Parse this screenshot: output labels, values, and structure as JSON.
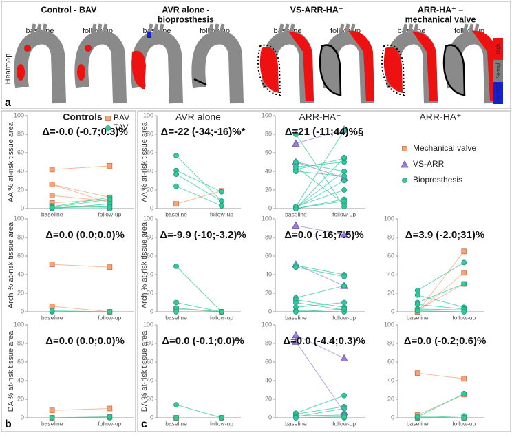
{
  "figure_a": {
    "letter": "a",
    "columns": [
      {
        "title": [
          "Control - BAV"
        ],
        "labels": [
          "baseline",
          "follow-up"
        ]
      },
      {
        "title": [
          "AVR alone -",
          "bioprosthesis"
        ],
        "labels": [
          "baseline",
          "follow-up"
        ]
      },
      {
        "title": [
          "VS-ARR-HA⁻"
        ],
        "labels": [
          "baseline",
          "follow-up"
        ]
      },
      {
        "title": [
          "ARR-HA⁺ –",
          "mechanical valve"
        ],
        "labels": [
          "baseline",
          "follow-up"
        ]
      }
    ],
    "side_label": "Heatmap",
    "colorbar": [
      {
        "label": "High",
        "color": "#ee1111"
      },
      {
        "label": "Normal",
        "color": "#808080"
      },
      {
        "label": "Low WSS",
        "color": "#1122dd"
      }
    ]
  },
  "letters": [
    "b",
    "c"
  ],
  "rows": [
    "AA % at-risk tissue area",
    "Arch % at-risk tissue area",
    "DA % at-risk tissue area"
  ],
  "columns": [
    "Controls",
    "AVR alone",
    "ARR-HA⁻",
    "ARR-HA⁺"
  ],
  "legend": [
    {
      "name": "Mechanical valve",
      "marker": "square",
      "color": "#f4a47c"
    },
    {
      "name": "VS-ARR",
      "marker": "triangle",
      "color": "#9a7ed8"
    },
    {
      "name": "Bioprosthesis",
      "marker": "circle",
      "color": "#33c79e"
    }
  ],
  "chart_data": [
    {
      "type": "line",
      "categories": [
        "baseline",
        "follow-up"
      ],
      "ylim": [
        0,
        100
      ],
      "yticks": [
        0,
        20,
        40,
        60,
        80,
        100
      ],
      "annotation": "Δ=-0.0 (-0.7;0.3)%",
      "legend": [
        {
          "name": "BAV",
          "marker": "square",
          "color": "#f4a47c"
        },
        {
          "name": "TAV",
          "marker": "circle",
          "color": "#33c79e"
        }
      ],
      "lines": [
        {
          "marker": "square",
          "color": "#f4a47c",
          "values": [
            42,
            46
          ]
        },
        {
          "marker": "square",
          "color": "#f4a47c",
          "values": [
            26,
            12
          ]
        },
        {
          "marker": "square",
          "color": "#f4a47c",
          "values": [
            26,
            6
          ]
        },
        {
          "marker": "square",
          "color": "#f4a47c",
          "values": [
            14,
            8
          ]
        },
        {
          "marker": "square",
          "color": "#f4a47c",
          "values": [
            6,
            10
          ]
        },
        {
          "marker": "square",
          "color": "#f4a47c",
          "values": [
            3,
            1
          ]
        },
        {
          "marker": "circle",
          "color": "#33c79e",
          "values": [
            2,
            12
          ]
        },
        {
          "marker": "circle",
          "color": "#33c79e",
          "values": [
            1,
            10
          ]
        },
        {
          "marker": "circle",
          "color": "#33c79e",
          "values": [
            0,
            5
          ]
        },
        {
          "marker": "circle",
          "color": "#33c79e",
          "values": [
            0,
            0
          ]
        },
        {
          "marker": "circle",
          "color": "#33c79e",
          "values": [
            1,
            2
          ]
        }
      ]
    },
    {
      "type": "line",
      "categories": [
        "baseline",
        "follow-up"
      ],
      "ylim": [
        0,
        100
      ],
      "yticks": [
        0,
        20,
        40,
        60,
        80,
        100
      ],
      "annotation": "Δ=-22 (-34;-16)%*",
      "lines": [
        {
          "marker": "square",
          "color": "#f4a47c",
          "values": [
            5,
            19
          ]
        },
        {
          "marker": "circle",
          "color": "#33c79e",
          "values": [
            57,
            8
          ]
        },
        {
          "marker": "circle",
          "color": "#33c79e",
          "values": [
            41,
            18
          ]
        },
        {
          "marker": "circle",
          "color": "#33c79e",
          "values": [
            37,
            8
          ]
        },
        {
          "marker": "circle",
          "color": "#33c79e",
          "values": [
            24,
            3
          ]
        }
      ]
    },
    {
      "type": "line",
      "categories": [
        "baseline",
        "follow-up"
      ],
      "ylim": [
        0,
        100
      ],
      "yticks": [
        0,
        20,
        40,
        60,
        80,
        100
      ],
      "annotation": "Δ=21 (-11;44)%§",
      "lines": [
        {
          "marker": "triangle",
          "color": "#9a7ed8",
          "values": [
            70,
            85
          ]
        },
        {
          "marker": "triangle",
          "color": "#9a7ed8",
          "values": [
            50,
            33
          ]
        },
        {
          "marker": "circle",
          "color": "#33c79e",
          "values": [
            80,
            2
          ]
        },
        {
          "marker": "circle",
          "color": "#33c79e",
          "values": [
            50,
            40
          ]
        },
        {
          "marker": "circle",
          "color": "#33c79e",
          "values": [
            45,
            50
          ]
        },
        {
          "marker": "circle",
          "color": "#33c79e",
          "values": [
            42,
            54
          ]
        },
        {
          "marker": "circle",
          "color": "#33c79e",
          "values": [
            40,
            35
          ]
        },
        {
          "marker": "circle",
          "color": "#33c79e",
          "values": [
            45,
            5
          ]
        },
        {
          "marker": "circle",
          "color": "#33c79e",
          "values": [
            2,
            84
          ]
        },
        {
          "marker": "circle",
          "color": "#33c79e",
          "values": [
            1,
            40
          ]
        },
        {
          "marker": "circle",
          "color": "#33c79e",
          "values": [
            1,
            30
          ]
        },
        {
          "marker": "circle",
          "color": "#33c79e",
          "values": [
            0,
            10
          ]
        },
        {
          "marker": "circle",
          "color": "#33c79e",
          "values": [
            0,
            8
          ]
        },
        {
          "marker": "circle",
          "color": "#33c79e",
          "values": [
            2,
            20
          ]
        },
        {
          "marker": "circle",
          "color": "#33c79e",
          "values": [
            0,
            55
          ]
        }
      ]
    },
    {
      "type": "line",
      "categories": [
        "baseline",
        "follow-up"
      ],
      "ylim": [
        0,
        100
      ],
      "yticks": [
        0,
        20,
        40,
        60,
        80,
        100
      ],
      "annotation": "Δ=0.0 (0.0;0.0)%",
      "lines": [
        {
          "marker": "square",
          "color": "#f4a47c",
          "values": [
            51,
            48
          ]
        },
        {
          "marker": "square",
          "color": "#f4a47c",
          "values": [
            6,
            0
          ]
        },
        {
          "marker": "circle",
          "color": "#33c79e",
          "values": [
            0,
            0
          ]
        },
        {
          "marker": "circle",
          "color": "#33c79e",
          "values": [
            1,
            0
          ]
        }
      ]
    },
    {
      "type": "line",
      "categories": [
        "baseline",
        "follow-up"
      ],
      "ylim": [
        0,
        100
      ],
      "yticks": [
        0,
        20,
        40,
        60,
        80,
        100
      ],
      "annotation": "Δ=-9.9 (-10;-3.2)%",
      "lines": [
        {
          "marker": "square",
          "color": "#f4a47c",
          "values": [
            3,
            0
          ]
        },
        {
          "marker": "circle",
          "color": "#33c79e",
          "values": [
            49,
            0
          ]
        },
        {
          "marker": "circle",
          "color": "#33c79e",
          "values": [
            10,
            0
          ]
        },
        {
          "marker": "circle",
          "color": "#33c79e",
          "values": [
            4,
            0
          ]
        },
        {
          "marker": "circle",
          "color": "#33c79e",
          "values": [
            0,
            0
          ]
        }
      ]
    },
    {
      "type": "line",
      "categories": [
        "baseline",
        "follow-up"
      ],
      "ylim": [
        0,
        100
      ],
      "yticks": [
        0,
        20,
        40,
        60,
        80,
        100
      ],
      "annotation": "Δ=0.0 (-16;7.5)%",
      "lines": [
        {
          "marker": "triangle",
          "color": "#9a7ed8",
          "values": [
            93,
            83
          ]
        },
        {
          "marker": "triangle",
          "color": "#9a7ed8",
          "values": [
            51,
            28
          ]
        },
        {
          "marker": "circle",
          "color": "#33c79e",
          "values": [
            50,
            40
          ]
        },
        {
          "marker": "circle",
          "color": "#33c79e",
          "values": [
            48,
            38
          ]
        },
        {
          "marker": "circle",
          "color": "#33c79e",
          "values": [
            15,
            28
          ]
        },
        {
          "marker": "circle",
          "color": "#33c79e",
          "values": [
            13,
            5
          ]
        },
        {
          "marker": "circle",
          "color": "#33c79e",
          "values": [
            10,
            2
          ]
        },
        {
          "marker": "circle",
          "color": "#33c79e",
          "values": [
            5,
            10
          ]
        },
        {
          "marker": "circle",
          "color": "#33c79e",
          "values": [
            1,
            0
          ]
        },
        {
          "marker": "circle",
          "color": "#33c79e",
          "values": [
            0,
            3
          ]
        }
      ]
    },
    {
      "type": "line",
      "categories": [
        "baseline",
        "follow-up"
      ],
      "ylim": [
        0,
        100
      ],
      "yticks": [
        0,
        20,
        40,
        60,
        80,
        100
      ],
      "annotation": "Δ=3.9 (-2.0;31)%",
      "lines": [
        {
          "marker": "square",
          "color": "#f4a47c",
          "values": [
            0,
            65
          ]
        },
        {
          "marker": "square",
          "color": "#f4a47c",
          "values": [
            0,
            42
          ]
        },
        {
          "marker": "square",
          "color": "#f4a47c",
          "values": [
            2,
            30
          ]
        },
        {
          "marker": "circle",
          "color": "#33c79e",
          "values": [
            23,
            53
          ]
        },
        {
          "marker": "circle",
          "color": "#33c79e",
          "values": [
            18,
            5
          ]
        },
        {
          "marker": "circle",
          "color": "#33c79e",
          "values": [
            10,
            30
          ]
        },
        {
          "marker": "circle",
          "color": "#33c79e",
          "values": [
            8,
            3
          ]
        },
        {
          "marker": "circle",
          "color": "#33c79e",
          "values": [
            3,
            2
          ]
        },
        {
          "marker": "circle",
          "color": "#33c79e",
          "values": [
            1,
            0
          ]
        }
      ]
    },
    {
      "type": "line",
      "categories": [
        "baseline",
        "follow-up"
      ],
      "ylim": [
        0,
        100
      ],
      "yticks": [
        0,
        20,
        40,
        60,
        80,
        100
      ],
      "annotation": "Δ=0.0 (0.0;0.0)%",
      "lines": [
        {
          "marker": "square",
          "color": "#f4a47c",
          "values": [
            8,
            10
          ]
        },
        {
          "marker": "square",
          "color": "#f4a47c",
          "values": [
            0,
            1
          ]
        },
        {
          "marker": "circle",
          "color": "#33c79e",
          "values": [
            0,
            0
          ]
        },
        {
          "marker": "circle",
          "color": "#33c79e",
          "values": [
            0,
            1
          ]
        }
      ]
    },
    {
      "type": "line",
      "categories": [
        "baseline",
        "follow-up"
      ],
      "ylim": [
        0,
        100
      ],
      "yticks": [
        0,
        20,
        40,
        60,
        80,
        100
      ],
      "annotation": "Δ=0.0 (-0.1;0.0)%",
      "lines": [
        {
          "marker": "square",
          "color": "#f4a47c",
          "values": [
            0,
            0
          ]
        },
        {
          "marker": "circle",
          "color": "#33c79e",
          "values": [
            14,
            0
          ]
        },
        {
          "marker": "circle",
          "color": "#33c79e",
          "values": [
            0,
            0
          ]
        }
      ]
    },
    {
      "type": "line",
      "categories": [
        "baseline",
        "follow-up"
      ],
      "ylim": [
        0,
        100
      ],
      "yticks": [
        0,
        20,
        40,
        60,
        80,
        100
      ],
      "annotation": "Δ=0.0 (-4.4;0.3)%",
      "lines": [
        {
          "marker": "triangle",
          "color": "#9a7ed8",
          "values": [
            89,
            64
          ]
        },
        {
          "marker": "triangle",
          "color": "#9a7ed8",
          "values": [
            82,
            6
          ]
        },
        {
          "marker": "circle",
          "color": "#33c79e",
          "values": [
            5,
            24
          ]
        },
        {
          "marker": "circle",
          "color": "#33c79e",
          "values": [
            4,
            12
          ]
        },
        {
          "marker": "circle",
          "color": "#33c79e",
          "values": [
            2,
            3
          ]
        },
        {
          "marker": "circle",
          "color": "#33c79e",
          "values": [
            1,
            10
          ]
        },
        {
          "marker": "circle",
          "color": "#33c79e",
          "values": [
            0,
            0
          ]
        },
        {
          "marker": "circle",
          "color": "#33c79e",
          "values": [
            0,
            1
          ]
        }
      ]
    },
    {
      "type": "line",
      "categories": [
        "baseline",
        "follow-up"
      ],
      "ylim": [
        0,
        100
      ],
      "yticks": [
        0,
        20,
        40,
        60,
        80,
        100
      ],
      "annotation": "Δ=0.0 (-0.2;0.6)%",
      "lines": [
        {
          "marker": "square",
          "color": "#f4a47c",
          "values": [
            48,
            42
          ]
        },
        {
          "marker": "square",
          "color": "#f4a47c",
          "values": [
            3,
            25
          ]
        },
        {
          "marker": "square",
          "color": "#f4a47c",
          "values": [
            0,
            0
          ]
        },
        {
          "marker": "circle",
          "color": "#33c79e",
          "values": [
            1,
            26
          ]
        },
        {
          "marker": "circle",
          "color": "#33c79e",
          "values": [
            0,
            2
          ]
        },
        {
          "marker": "circle",
          "color": "#33c79e",
          "values": [
            1,
            0
          ]
        }
      ]
    }
  ]
}
